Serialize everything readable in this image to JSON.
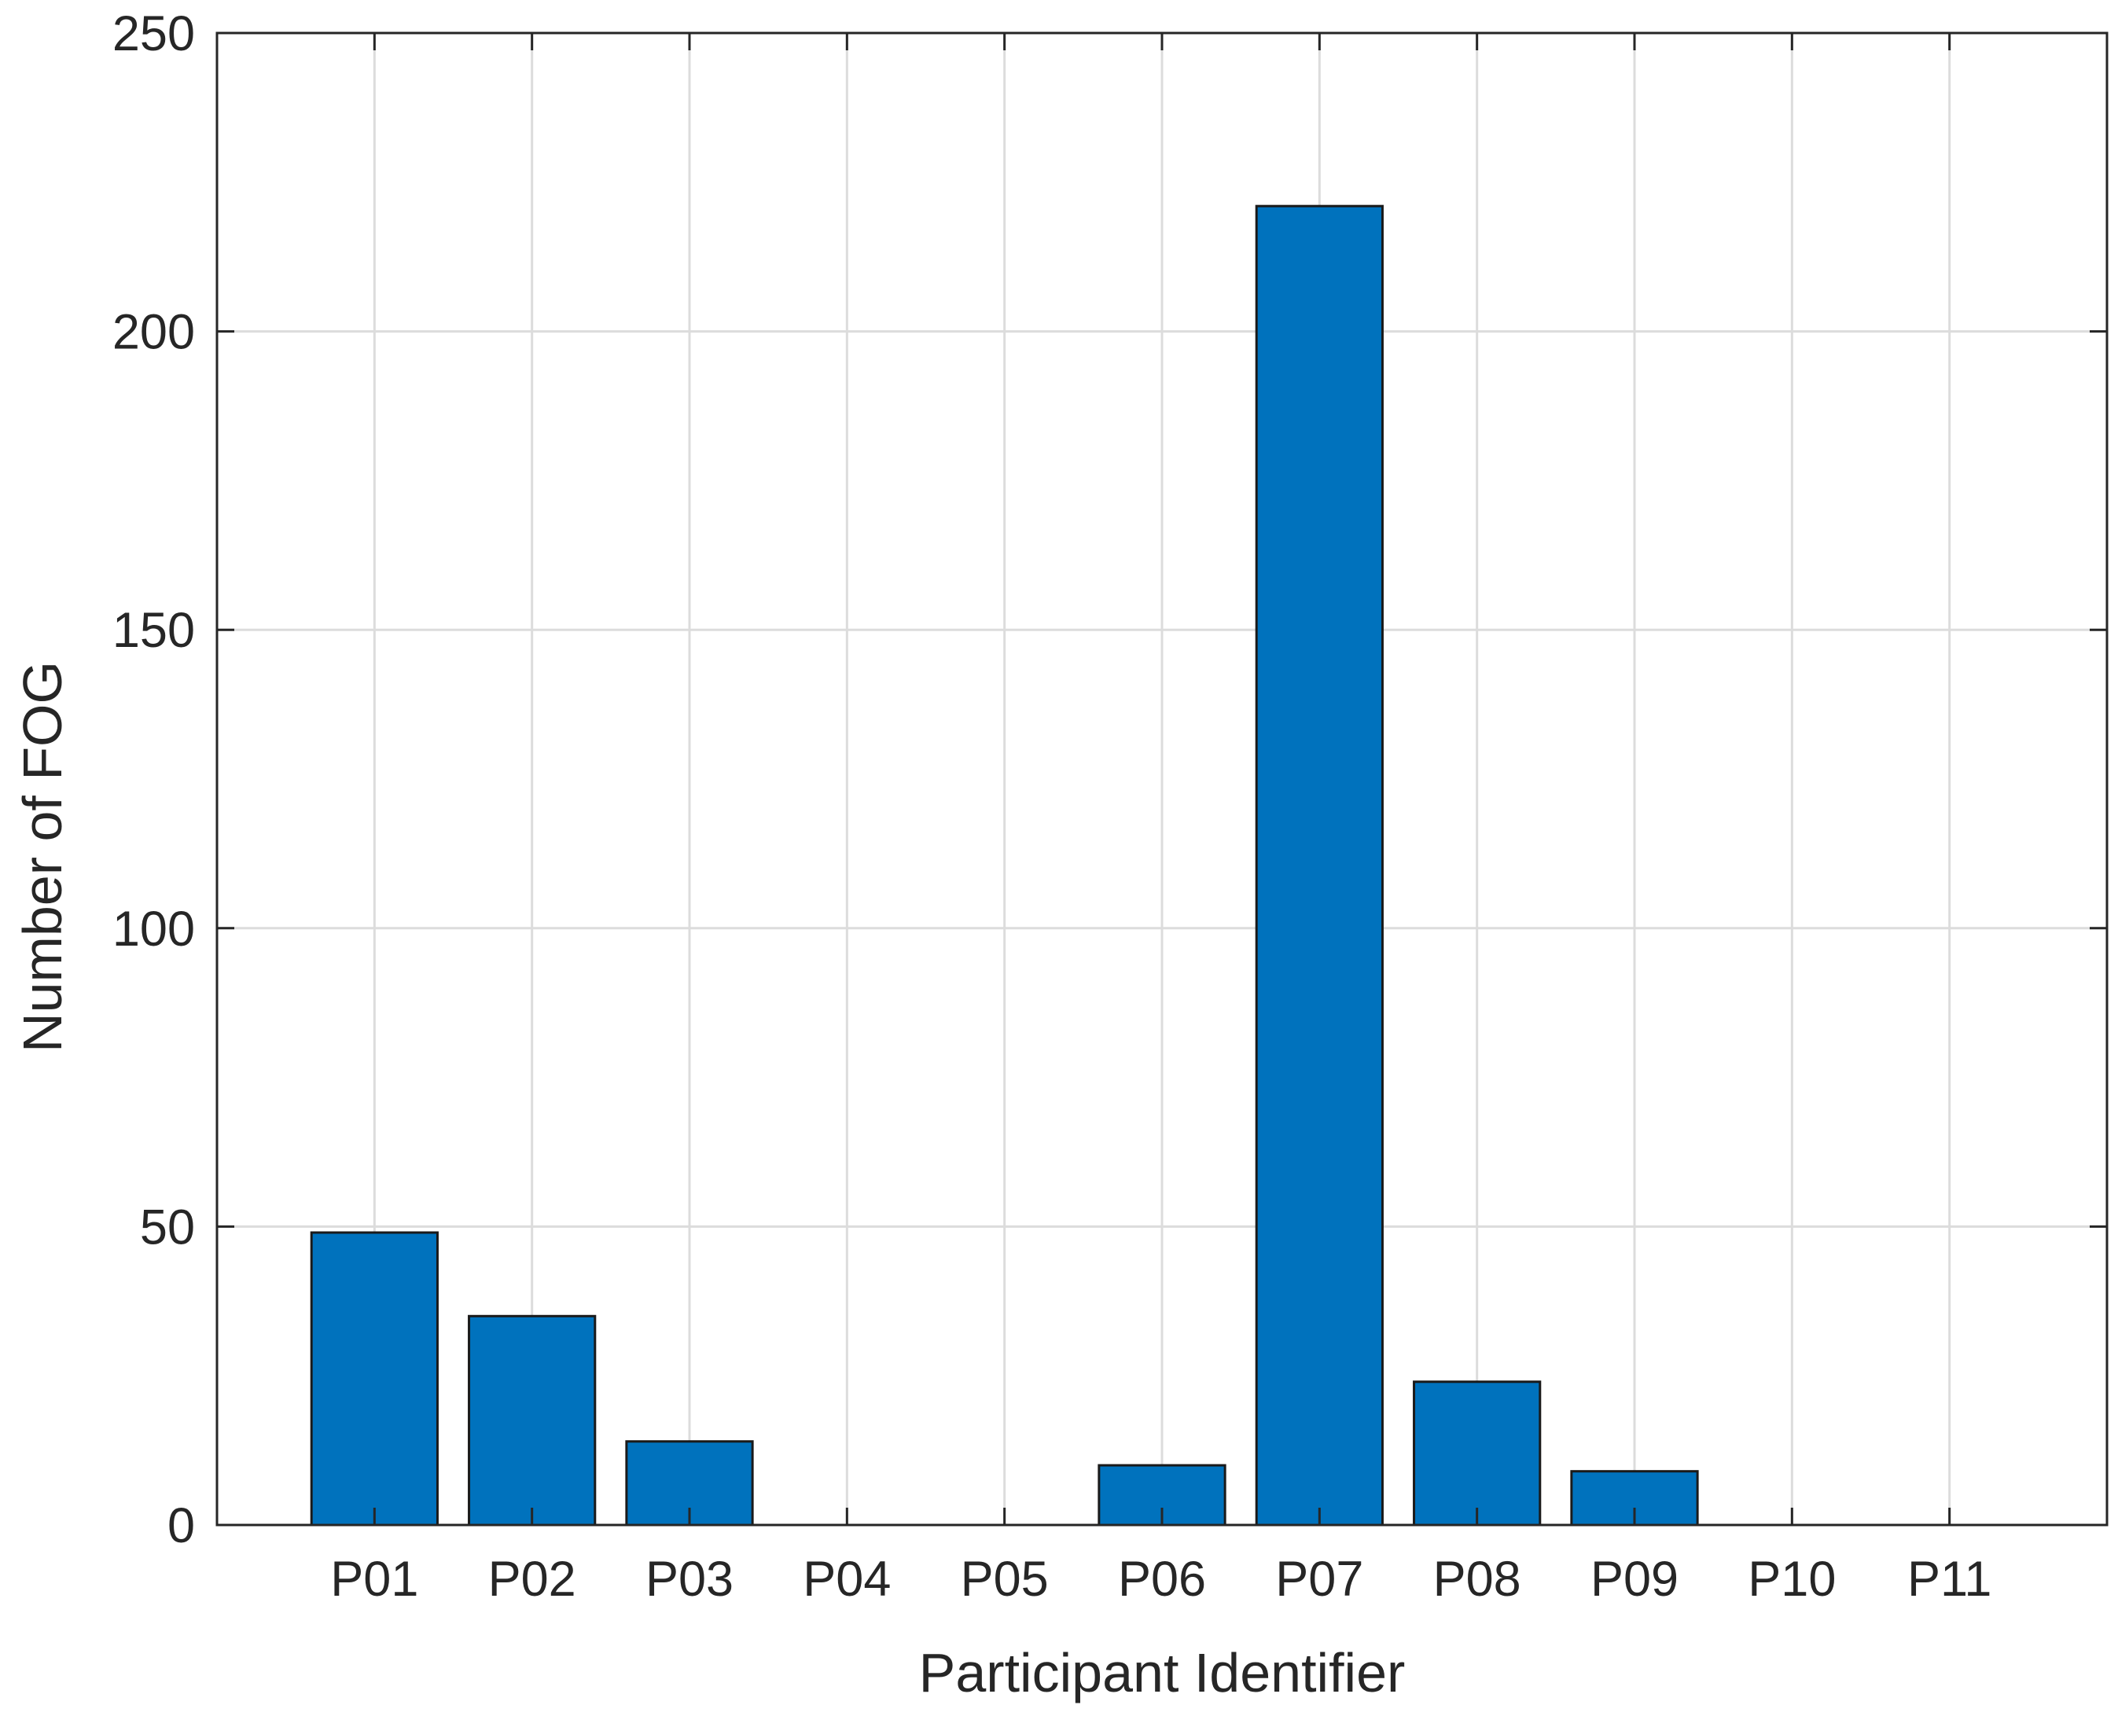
{
  "chart_data": {
    "type": "bar",
    "title": "",
    "xlabel": "Participant Identifier",
    "ylabel": "Number of FOG",
    "categories": [
      "P01",
      "P02",
      "P03",
      "P04",
      "P05",
      "P06",
      "P07",
      "P08",
      "P09",
      "P10",
      "P11"
    ],
    "values": [
      49,
      35,
      14,
      0,
      0,
      10,
      221,
      24,
      9,
      0,
      0
    ],
    "ylim": [
      0,
      250
    ],
    "yticks": [
      "0",
      "50",
      "100",
      "150",
      "200",
      "250"
    ],
    "grid": true,
    "legend": "none",
    "bar_color": "#0072BD",
    "bar_edge_color": "#1a1a1a"
  }
}
